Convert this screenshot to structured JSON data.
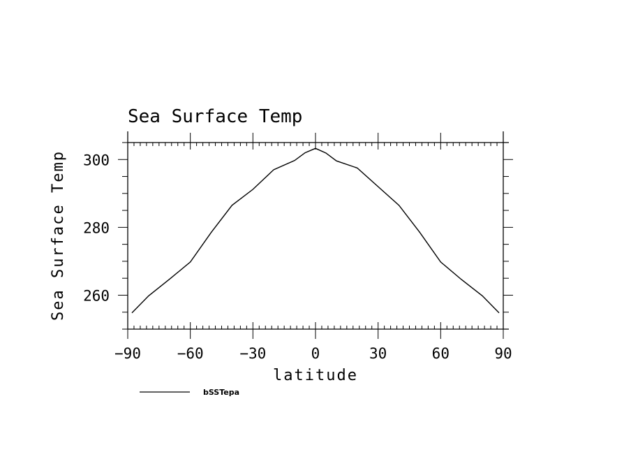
{
  "chart_data": {
    "type": "line",
    "title": "Sea Surface Temp",
    "xlabel": "latitude",
    "ylabel": "Sea Surface Temp",
    "xlim": [
      -90,
      90
    ],
    "ylim": [
      250,
      305
    ],
    "x_ticks": [
      -90,
      -60,
      -30,
      0,
      30,
      60,
      90
    ],
    "x_tick_labels": [
      "−90",
      "−60",
      "−30",
      "0",
      "30",
      "60",
      "90"
    ],
    "y_ticks": [
      260,
      280,
      300
    ],
    "y_tick_labels": [
      "260",
      "280",
      "300"
    ],
    "legend": "bottom-left",
    "grid": false,
    "series": [
      {
        "name": "bSSTepa",
        "color": "#000000",
        "x": [
          -88,
          -80,
          -70,
          -60,
          -50,
          -40,
          -30,
          -20,
          -10,
          -5,
          0,
          5,
          10,
          20,
          30,
          40,
          50,
          60,
          -60,
          70,
          80,
          88
        ],
        "y": [
          254.8,
          259.8,
          264.7,
          269.8,
          278.5,
          286.5,
          291.2,
          297.0,
          299.7,
          302.0,
          303.3,
          301.9,
          299.6,
          297.5,
          292.0,
          286.5,
          278.5,
          269.8,
          269.8,
          264.6,
          259.8,
          254.8
        ]
      }
    ]
  }
}
